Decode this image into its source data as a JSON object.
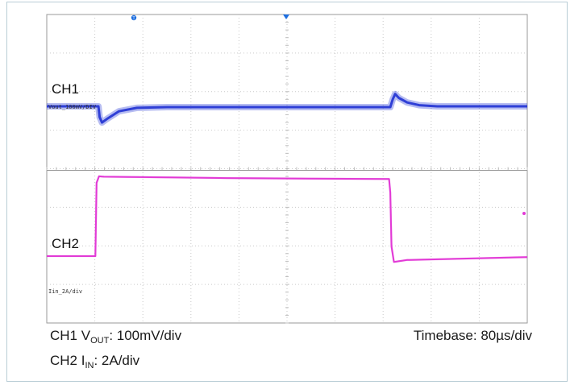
{
  "chart_data": {
    "type": "line",
    "x_divisions": 10,
    "y_divisions": 8,
    "timebase": "80µs/div",
    "x_unit": "µs",
    "xlim": [
      0,
      800
    ],
    "series": [
      {
        "name": "CH1",
        "scale_label": "Vout_100mV/DIV",
        "unit": "mV",
        "color": "#2f3fd6",
        "points": [
          [
            0,
            0
          ],
          [
            86,
            0
          ],
          [
            88,
            -28
          ],
          [
            92,
            -42
          ],
          [
            100,
            -33
          ],
          [
            120,
            -13
          ],
          [
            150,
            -4
          ],
          [
            200,
            -2
          ],
          [
            300,
            -2
          ],
          [
            400,
            -2
          ],
          [
            560,
            -2
          ],
          [
            572,
            -2
          ],
          [
            576,
            18
          ],
          [
            580,
            32
          ],
          [
            586,
            22
          ],
          [
            600,
            10
          ],
          [
            620,
            3
          ],
          [
            650,
            0
          ],
          [
            800,
            0
          ]
        ]
      },
      {
        "name": "CH2",
        "scale_label": "Iin_2A/div",
        "unit": "A",
        "color": "#e23ad6",
        "points": [
          [
            0,
            0
          ],
          [
            81,
            0
          ],
          [
            83,
            3.8
          ],
          [
            87,
            4.14
          ],
          [
            95,
            4.12
          ],
          [
            300,
            4.05
          ],
          [
            570,
            4.0
          ],
          [
            572,
            3.3
          ],
          [
            574,
            0.5
          ],
          [
            578,
            -0.3
          ],
          [
            600,
            -0.2
          ],
          [
            800,
            -0.05
          ]
        ]
      }
    ]
  },
  "screen": {
    "ch1_label": "CH1",
    "ch2_label": "CH2",
    "ch1_scale": "Vout_100mV/DIV",
    "ch2_scale": "Iin_2A/div",
    "trigger_marker": "T"
  },
  "caption": {
    "ch1_prefix": "CH1 V",
    "ch1_sub": "OUT",
    "ch1_suffix": ": 100mV/div",
    "ch2_prefix": "CH2 I",
    "ch2_sub": "IN",
    "ch2_suffix": ": 2A/div",
    "timebase": "Timebase: 80µs/div"
  },
  "colors": {
    "ch1": "#2f3fd6",
    "ch2": "#e23ad6",
    "grid": "#c9c9c9",
    "marker_blue": "#1e6fe0"
  }
}
